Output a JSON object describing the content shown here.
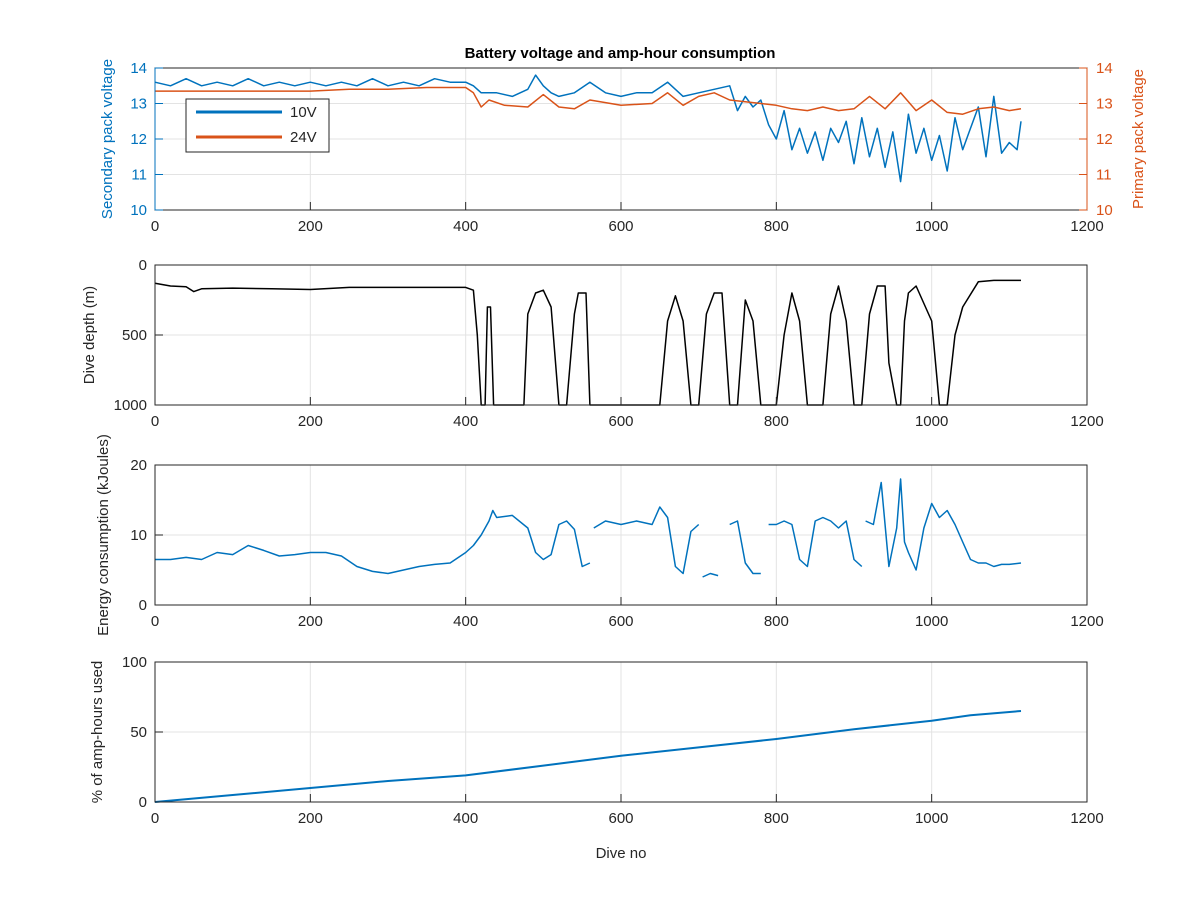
{
  "figure": {
    "title": "Battery voltage and amp-hour consumption"
  },
  "colors": {
    "blue": "#0072bd",
    "orange": "#d95319",
    "black": "#000000",
    "axis": "#262626",
    "grid": "#e3e3e3"
  },
  "chart_data": [
    {
      "type": "line",
      "title": "Battery voltage and amp-hour consumption",
      "xlabel": "",
      "ylabel": "Secondary pack voltage",
      "ylabel_right": "Primary pack voltage",
      "xlim": [
        0,
        1200
      ],
      "ylim": [
        10,
        14
      ],
      "ylim_right": [
        10,
        14
      ],
      "xticks": [
        0,
        200,
        400,
        600,
        800,
        1000,
        1200
      ],
      "yticks": [
        10,
        11,
        12,
        13,
        14
      ],
      "yticks_right": [
        10,
        11,
        12,
        13,
        14
      ],
      "grid": true,
      "legend_position": "top-left",
      "series": [
        {
          "name": "10V",
          "axis": "left",
          "x": [
            0,
            20,
            40,
            60,
            80,
            100,
            120,
            140,
            160,
            180,
            200,
            220,
            240,
            260,
            280,
            300,
            320,
            340,
            360,
            380,
            400,
            410,
            420,
            440,
            460,
            480,
            490,
            500,
            510,
            520,
            540,
            560,
            580,
            600,
            620,
            640,
            660,
            680,
            700,
            720,
            740,
            750,
            760,
            770,
            780,
            790,
            800,
            810,
            820,
            830,
            840,
            850,
            860,
            870,
            880,
            890,
            900,
            910,
            920,
            930,
            940,
            950,
            960,
            970,
            980,
            990,
            1000,
            1010,
            1020,
            1030,
            1040,
            1050,
            1060,
            1070,
            1080,
            1090,
            1100,
            1110,
            1115
          ],
          "values": [
            13.6,
            13.5,
            13.7,
            13.5,
            13.6,
            13.5,
            13.7,
            13.5,
            13.6,
            13.5,
            13.6,
            13.5,
            13.6,
            13.5,
            13.7,
            13.5,
            13.6,
            13.5,
            13.7,
            13.6,
            13.6,
            13.5,
            13.3,
            13.3,
            13.2,
            13.4,
            13.8,
            13.5,
            13.3,
            13.2,
            13.3,
            13.6,
            13.3,
            13.2,
            13.3,
            13.3,
            13.6,
            13.2,
            13.3,
            13.4,
            13.5,
            12.8,
            13.2,
            12.9,
            13.1,
            12.4,
            12.0,
            12.8,
            11.7,
            12.3,
            11.6,
            12.2,
            11.4,
            12.3,
            11.9,
            12.5,
            11.3,
            12.6,
            11.5,
            12.3,
            11.2,
            12.2,
            10.8,
            12.7,
            11.6,
            12.3,
            11.4,
            12.1,
            11.1,
            12.6,
            11.7,
            12.3,
            12.9,
            11.5,
            13.2,
            11.6,
            11.9,
            11.7,
            12.5
          ]
        },
        {
          "name": "24V",
          "axis": "right",
          "x": [
            0,
            50,
            100,
            150,
            200,
            250,
            300,
            350,
            400,
            410,
            420,
            430,
            450,
            480,
            500,
            520,
            540,
            560,
            600,
            640,
            660,
            680,
            700,
            720,
            740,
            760,
            780,
            800,
            820,
            840,
            860,
            880,
            900,
            920,
            940,
            960,
            980,
            1000,
            1020,
            1040,
            1060,
            1080,
            1100,
            1115
          ],
          "values": [
            13.35,
            13.35,
            13.35,
            13.35,
            13.35,
            13.4,
            13.4,
            13.45,
            13.45,
            13.3,
            12.9,
            13.1,
            12.95,
            12.9,
            13.25,
            12.9,
            12.85,
            13.1,
            12.95,
            13.0,
            13.3,
            12.95,
            13.2,
            13.3,
            13.1,
            13.05,
            13.0,
            12.95,
            12.85,
            12.8,
            12.9,
            12.8,
            12.85,
            13.2,
            12.85,
            13.3,
            12.8,
            13.1,
            12.75,
            12.7,
            12.85,
            12.9,
            12.8,
            12.85
          ]
        }
      ]
    },
    {
      "type": "line",
      "xlabel": "",
      "ylabel": "Dive depth (m)",
      "xlim": [
        0,
        1200
      ],
      "ylim": [
        0,
        1000
      ],
      "y_reversed": true,
      "xticks": [
        0,
        200,
        400,
        600,
        800,
        1000,
        1200
      ],
      "yticks": [
        0,
        500,
        1000
      ],
      "ytick_labels": [
        "0",
        "500",
        "1000"
      ],
      "grid": true,
      "series": [
        {
          "x": [
            0,
            20,
            40,
            50,
            60,
            100,
            150,
            200,
            250,
            300,
            350,
            400,
            410,
            415,
            420,
            425,
            428,
            432,
            436,
            440,
            460,
            475,
            480,
            490,
            500,
            510,
            520,
            530,
            540,
            545,
            555,
            560,
            565,
            580,
            600,
            620,
            640,
            650,
            660,
            670,
            680,
            690,
            700,
            710,
            720,
            730,
            740,
            750,
            760,
            770,
            780,
            790,
            800,
            810,
            820,
            830,
            840,
            850,
            860,
            870,
            880,
            890,
            900,
            910,
            920,
            930,
            940,
            945,
            955,
            960,
            965,
            970,
            980,
            1000,
            1010,
            1020,
            1030,
            1040,
            1060,
            1080,
            1100,
            1115
          ],
          "values": [
            130,
            150,
            155,
            190,
            170,
            165,
            170,
            175,
            160,
            160,
            160,
            160,
            180,
            500,
            1000,
            1000,
            300,
            300,
            1000,
            1000,
            1000,
            1000,
            350,
            200,
            180,
            300,
            1000,
            1000,
            350,
            200,
            200,
            1000,
            1000,
            1000,
            1000,
            1000,
            1000,
            1000,
            400,
            220,
            400,
            1000,
            1000,
            350,
            200,
            200,
            1000,
            1000,
            250,
            400,
            1000,
            1000,
            1000,
            500,
            200,
            400,
            1000,
            1000,
            1000,
            350,
            150,
            400,
            1000,
            1000,
            350,
            150,
            150,
            700,
            1000,
            1000,
            400,
            200,
            150,
            400,
            1000,
            1000,
            500,
            300,
            120,
            110,
            110,
            110
          ]
        }
      ]
    },
    {
      "type": "line",
      "xlabel": "",
      "ylabel": "Energy consumption (kJoules)",
      "xlim": [
        0,
        1200
      ],
      "ylim": [
        0,
        20
      ],
      "xticks": [
        0,
        200,
        400,
        600,
        800,
        1000,
        1200
      ],
      "yticks": [
        0,
        10,
        20
      ],
      "grid": true,
      "series": [
        {
          "segments": [
            {
              "x": [
                0,
                20,
                40,
                60,
                80,
                100,
                120,
                140,
                160,
                180,
                200,
                220,
                240,
                260,
                280,
                300,
                320,
                340,
                360,
                380,
                400,
                410,
                420,
                430,
                435,
                440,
                460,
                480,
                490,
                500,
                510,
                520,
                530,
                540,
                550,
                560
              ],
              "values": [
                6.5,
                6.5,
                6.8,
                6.5,
                7.5,
                7.2,
                8.5,
                7.8,
                7.0,
                7.2,
                7.5,
                7.5,
                7.0,
                5.5,
                4.8,
                4.5,
                5.0,
                5.5,
                5.8,
                6.0,
                7.5,
                8.5,
                10.0,
                12.0,
                13.5,
                12.5,
                12.8,
                11.0,
                7.5,
                6.5,
                7.2,
                11.5,
                12.0,
                10.8,
                5.5,
                6.0
              ]
            },
            {
              "x": [
                565,
                580,
                600,
                620,
                640,
                650,
                660,
                670,
                680,
                690,
                700
              ],
              "values": [
                11.0,
                12.0,
                11.5,
                12.0,
                11.5,
                14.0,
                12.5,
                5.5,
                4.5,
                10.5,
                11.5
              ]
            },
            {
              "x": [
                705,
                715,
                725
              ],
              "values": [
                4.0,
                4.5,
                4.2
              ]
            },
            {
              "x": [
                740,
                750,
                760,
                770,
                780
              ],
              "values": [
                11.5,
                12.0,
                6.0,
                4.5,
                4.5
              ]
            },
            {
              "x": [
                790,
                800,
                810,
                820,
                830,
                840,
                850,
                860,
                870,
                880,
                890,
                900,
                910
              ],
              "values": [
                11.5,
                11.5,
                12.0,
                11.5,
                6.5,
                5.5,
                12.0,
                12.5,
                12.0,
                11.0,
                12.0,
                6.5,
                5.5
              ]
            },
            {
              "x": [
                915,
                925,
                935,
                945,
                955,
                960,
                965,
                970,
                980,
                990,
                1000,
                1010,
                1020,
                1030,
                1040,
                1050,
                1060,
                1070,
                1080,
                1090,
                1100,
                1115
              ],
              "values": [
                12.0,
                11.5,
                17.5,
                5.5,
                11.0,
                18.0,
                9.0,
                7.5,
                5.0,
                11.0,
                14.5,
                12.5,
                13.5,
                11.5,
                9.0,
                6.5,
                6.0,
                6.0,
                5.5,
                5.8,
                5.8,
                6.0
              ]
            }
          ]
        }
      ]
    },
    {
      "type": "line",
      "xlabel": "Dive no",
      "ylabel": "% of amp-hours used",
      "xlim": [
        0,
        1200
      ],
      "ylim": [
        0,
        100
      ],
      "xticks": [
        0,
        200,
        400,
        600,
        800,
        1000,
        1200
      ],
      "yticks": [
        0,
        50,
        100
      ],
      "grid": true,
      "series": [
        {
          "x": [
            0,
            100,
            200,
            300,
            400,
            500,
            600,
            700,
            800,
            900,
            1000,
            1050,
            1115
          ],
          "values": [
            0,
            5,
            10,
            15,
            19,
            26,
            33,
            39,
            45,
            52,
            58,
            62,
            65
          ]
        }
      ]
    }
  ]
}
